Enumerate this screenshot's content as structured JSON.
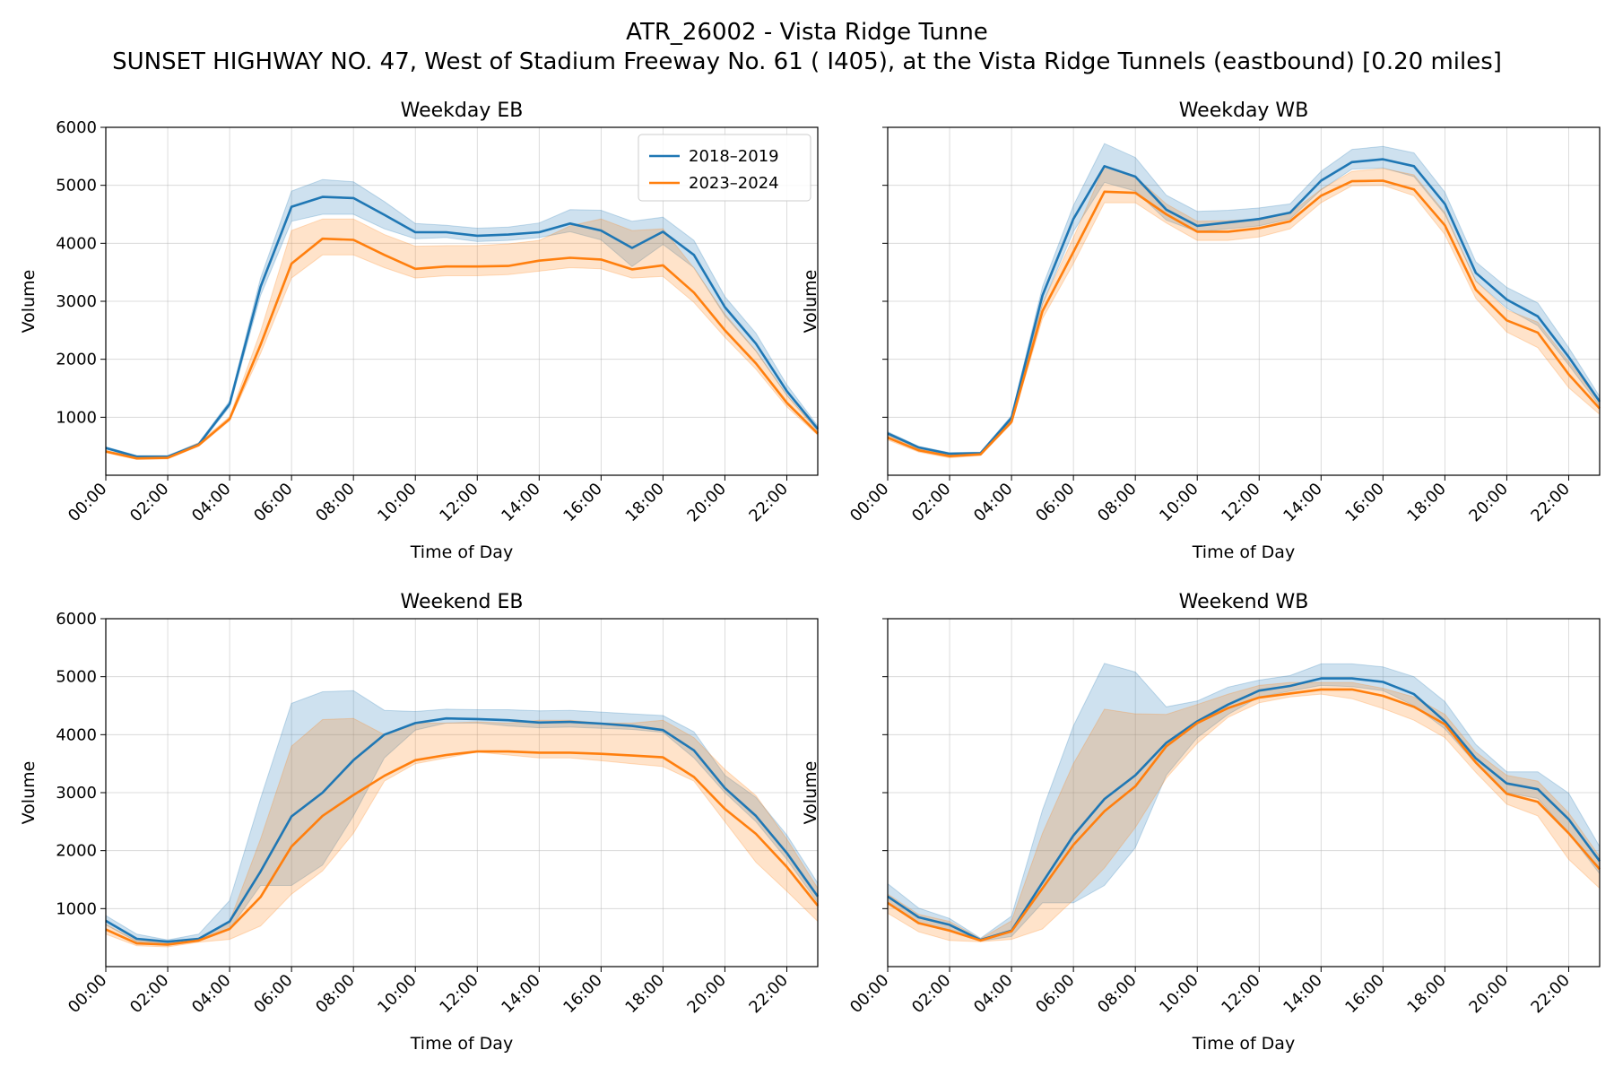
{
  "figure": {
    "title_line1": "ATR_26002 - Vista Ridge Tunne",
    "title_line2": "SUNSET HIGHWAY NO. 47, West of Stadium Freeway No. 61 ( I405), at the Vista Ridge Tunnels (eastbound) [0.20 miles]"
  },
  "colors": {
    "series_2018": "#1f77b4",
    "series_2023": "#ff7f0e"
  },
  "legend": {
    "placement": "upper-right",
    "entries": [
      "2018–2019",
      "2023–2024"
    ]
  },
  "chart_data": [
    {
      "type": "line",
      "title": "Weekday EB",
      "xlabel": "Time of Day",
      "ylabel": "Volume",
      "ylim": [
        0,
        6000
      ],
      "xlim": [
        0,
        23
      ],
      "yticks": [
        1000,
        2000,
        3000,
        4000,
        5000,
        6000
      ],
      "xtick_labels": [
        "00:00",
        "02:00",
        "04:00",
        "06:00",
        "08:00",
        "10:00",
        "12:00",
        "14:00",
        "16:00",
        "18:00",
        "20:00",
        "22:00"
      ],
      "grid": true,
      "show_legend": true,
      "series": [
        {
          "name": "2018–2019",
          "values": [
            470,
            320,
            320,
            530,
            1230,
            3250,
            4630,
            4800,
            4780,
            4490,
            4190,
            4190,
            4130,
            4150,
            4190,
            4340,
            4220,
            3920,
            4200,
            3800,
            2900,
            2270,
            1450,
            800
          ],
          "lower": [
            450,
            310,
            310,
            510,
            1180,
            3100,
            4380,
            4500,
            4500,
            4250,
            4080,
            4100,
            4030,
            4050,
            4100,
            4200,
            4060,
            3600,
            3980,
            3580,
            2750,
            2140,
            1380,
            760
          ],
          "upper": [
            490,
            340,
            340,
            560,
            1280,
            3400,
            4900,
            5100,
            5060,
            4720,
            4340,
            4310,
            4260,
            4280,
            4350,
            4580,
            4570,
            4380,
            4450,
            4050,
            3080,
            2450,
            1560,
            850
          ]
        },
        {
          "name": "2023–2024",
          "values": [
            410,
            290,
            300,
            520,
            970,
            2250,
            3650,
            4080,
            4060,
            3800,
            3560,
            3600,
            3600,
            3610,
            3700,
            3750,
            3720,
            3550,
            3620,
            3150,
            2500,
            1930,
            1250,
            720
          ],
          "lower": [
            390,
            270,
            280,
            500,
            940,
            2100,
            3400,
            3800,
            3800,
            3580,
            3400,
            3440,
            3440,
            3460,
            3520,
            3580,
            3560,
            3400,
            3430,
            2980,
            2380,
            1830,
            1180,
            690
          ],
          "upper": [
            430,
            310,
            320,
            560,
            1010,
            2480,
            4220,
            4420,
            4420,
            4150,
            3950,
            3960,
            3960,
            3990,
            4050,
            4300,
            4420,
            4220,
            4250,
            3570,
            2780,
            2150,
            1380,
            780
          ]
        }
      ]
    },
    {
      "type": "line",
      "title": "Weekday WB",
      "xlabel": "Time of Day",
      "ylabel": "Volume",
      "ylim": [
        0,
        6000
      ],
      "xlim": [
        0,
        23
      ],
      "yticks": [
        1000,
        2000,
        3000,
        4000,
        5000,
        6000
      ],
      "xtick_labels": [
        "00:00",
        "02:00",
        "04:00",
        "06:00",
        "08:00",
        "10:00",
        "12:00",
        "14:00",
        "16:00",
        "18:00",
        "20:00",
        "22:00"
      ],
      "grid": true,
      "show_legend": false,
      "series": [
        {
          "name": "2018–2019",
          "values": [
            720,
            480,
            370,
            380,
            990,
            3100,
            4420,
            5330,
            5150,
            4580,
            4300,
            4360,
            4420,
            4530,
            5080,
            5400,
            5450,
            5330,
            4680,
            3490,
            3030,
            2740,
            2040,
            1270
          ],
          "lower": [
            690,
            460,
            350,
            360,
            950,
            2950,
            4200,
            5050,
            4900,
            4400,
            4200,
            4250,
            4300,
            4420,
            4920,
            5280,
            5300,
            5150,
            4500,
            3350,
            2880,
            2580,
            1900,
            1190
          ],
          "upper": [
            750,
            500,
            390,
            400,
            1030,
            3250,
            4650,
            5720,
            5480,
            4830,
            4550,
            4570,
            4610,
            4680,
            5240,
            5620,
            5670,
            5560,
            4880,
            3680,
            3240,
            2970,
            2200,
            1360
          ]
        },
        {
          "name": "2023–2024",
          "values": [
            650,
            430,
            330,
            360,
            920,
            2830,
            3850,
            4890,
            4870,
            4500,
            4200,
            4200,
            4260,
            4380,
            4820,
            5070,
            5080,
            4930,
            4310,
            3200,
            2670,
            2460,
            1740,
            1150
          ],
          "lower": [
            610,
            400,
            300,
            340,
            890,
            2700,
            3650,
            4700,
            4700,
            4350,
            4050,
            4050,
            4110,
            4250,
            4700,
            4990,
            5000,
            4820,
            4150,
            3050,
            2470,
            2200,
            1510,
            1050
          ],
          "upper": [
            690,
            460,
            360,
            380,
            950,
            2960,
            4100,
            5320,
            5150,
            4680,
            4380,
            4390,
            4420,
            4520,
            4930,
            5240,
            5290,
            5180,
            4530,
            3350,
            2850,
            2640,
            1960,
            1270
          ]
        }
      ]
    },
    {
      "type": "line",
      "title": "Weekend EB",
      "xlabel": "Time of Day",
      "ylabel": "Volume",
      "ylim": [
        0,
        6000
      ],
      "xlim": [
        0,
        23
      ],
      "yticks": [
        1000,
        2000,
        3000,
        4000,
        5000,
        6000
      ],
      "xtick_labels": [
        "00:00",
        "02:00",
        "04:00",
        "06:00",
        "08:00",
        "10:00",
        "12:00",
        "14:00",
        "16:00",
        "18:00",
        "20:00",
        "22:00"
      ],
      "grid": true,
      "show_legend": false,
      "series": [
        {
          "name": "2018–2019",
          "values": [
            790,
            480,
            430,
            480,
            780,
            1640,
            2590,
            3000,
            3560,
            4000,
            4200,
            4280,
            4270,
            4250,
            4210,
            4220,
            4190,
            4150,
            4080,
            3730,
            3080,
            2600,
            1960,
            1210
          ],
          "lower": [
            720,
            430,
            400,
            440,
            650,
            1400,
            1400,
            1750,
            2600,
            3600,
            4080,
            4200,
            4200,
            4150,
            4120,
            4130,
            4110,
            4090,
            4040,
            3600,
            3000,
            2500,
            1850,
            1100
          ],
          "upper": [
            880,
            560,
            460,
            560,
            1140,
            2900,
            4540,
            4740,
            4760,
            4420,
            4400,
            4440,
            4430,
            4430,
            4410,
            4420,
            4390,
            4360,
            4330,
            4050,
            3300,
            2920,
            2270,
            1440
          ]
        },
        {
          "name": "2023–2024",
          "values": [
            640,
            400,
            380,
            450,
            650,
            1200,
            2070,
            2600,
            2960,
            3290,
            3560,
            3650,
            3710,
            3710,
            3690,
            3690,
            3670,
            3640,
            3610,
            3270,
            2720,
            2290,
            1720,
            1050
          ],
          "lower": [
            560,
            360,
            340,
            420,
            470,
            700,
            1250,
            1650,
            2300,
            3200,
            3500,
            3600,
            3700,
            3650,
            3600,
            3600,
            3550,
            3500,
            3450,
            3200,
            2500,
            1800,
            1300,
            780
          ],
          "upper": [
            730,
            450,
            420,
            480,
            780,
            2200,
            3800,
            4260,
            4280,
            4000,
            4200,
            4200,
            4220,
            4200,
            4250,
            4250,
            4200,
            4200,
            4250,
            3950,
            3400,
            2950,
            2200,
            1350
          ]
        }
      ]
    },
    {
      "type": "line",
      "title": "Weekend WB",
      "xlabel": "Time of Day",
      "ylabel": "Volume",
      "ylim": [
        0,
        6000
      ],
      "xlim": [
        0,
        23
      ],
      "yticks": [
        1000,
        2000,
        3000,
        4000,
        5000,
        6000
      ],
      "xtick_labels": [
        "00:00",
        "02:00",
        "04:00",
        "06:00",
        "08:00",
        "10:00",
        "12:00",
        "14:00",
        "16:00",
        "18:00",
        "20:00",
        "22:00"
      ],
      "grid": true,
      "show_legend": false,
      "series": [
        {
          "name": "2018–2019",
          "values": [
            1210,
            850,
            720,
            460,
            620,
            1450,
            2260,
            2890,
            3300,
            3860,
            4230,
            4520,
            4760,
            4840,
            4970,
            4970,
            4910,
            4700,
            4230,
            3590,
            3160,
            3060,
            2540,
            1820
          ],
          "lower": [
            1080,
            740,
            640,
            440,
            520,
            1100,
            1100,
            1400,
            2050,
            3300,
            3950,
            4350,
            4650,
            4750,
            4850,
            4830,
            4760,
            4500,
            4100,
            3500,
            3000,
            2900,
            2300,
            1600
          ],
          "upper": [
            1430,
            1010,
            830,
            490,
            870,
            2700,
            4150,
            5230,
            5080,
            4480,
            4580,
            4820,
            4940,
            5020,
            5220,
            5220,
            5170,
            5000,
            4570,
            3830,
            3360,
            3360,
            2990,
            2070
          ]
        },
        {
          "name": "2023–2024",
          "values": [
            1100,
            750,
            620,
            450,
            610,
            1350,
            2100,
            2680,
            3110,
            3800,
            4200,
            4460,
            4640,
            4710,
            4780,
            4780,
            4670,
            4480,
            4180,
            3520,
            2980,
            2840,
            2300,
            1680
          ],
          "lower": [
            920,
            600,
            450,
            430,
            470,
            650,
            1150,
            1700,
            2400,
            3250,
            3850,
            4300,
            4550,
            4650,
            4700,
            4620,
            4450,
            4250,
            3950,
            3350,
            2800,
            2600,
            1850,
            1350
          ],
          "upper": [
            1250,
            900,
            780,
            480,
            790,
            2300,
            3500,
            4440,
            4360,
            4350,
            4520,
            4700,
            4850,
            4900,
            4900,
            4900,
            4800,
            4650,
            4350,
            3700,
            3300,
            3200,
            2650,
            1900
          ]
        }
      ]
    }
  ]
}
